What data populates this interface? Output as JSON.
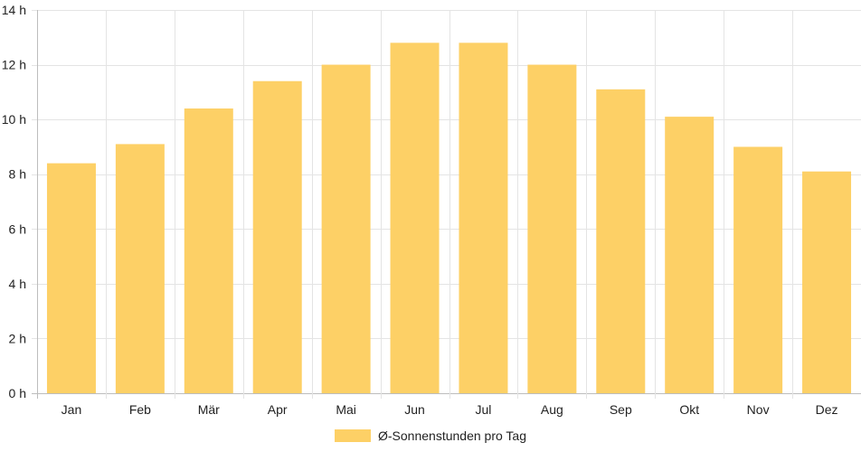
{
  "chart_data": {
    "type": "bar",
    "title": "",
    "xlabel": "",
    "ylabel": "",
    "categories": [
      "Jan",
      "Feb",
      "Mär",
      "Apr",
      "Mai",
      "Jun",
      "Jul",
      "Aug",
      "Sep",
      "Okt",
      "Nov",
      "Dez"
    ],
    "series": [
      {
        "name": "Ø-Sonnenstunden pro Tag",
        "values": [
          8.4,
          9.1,
          10.4,
          11.4,
          12.0,
          12.8,
          12.8,
          12.0,
          11.1,
          10.1,
          9.0,
          8.1
        ],
        "color": "#fdd066"
      }
    ],
    "ylim": [
      0,
      14
    ],
    "yticks": [
      0,
      2,
      4,
      6,
      8,
      10,
      12,
      14
    ],
    "ytick_labels": [
      "0 h",
      "2 h",
      "4 h",
      "6 h",
      "8 h",
      "10 h",
      "12 h",
      "14 h"
    ],
    "grid": true,
    "legend_position": "bottom"
  }
}
